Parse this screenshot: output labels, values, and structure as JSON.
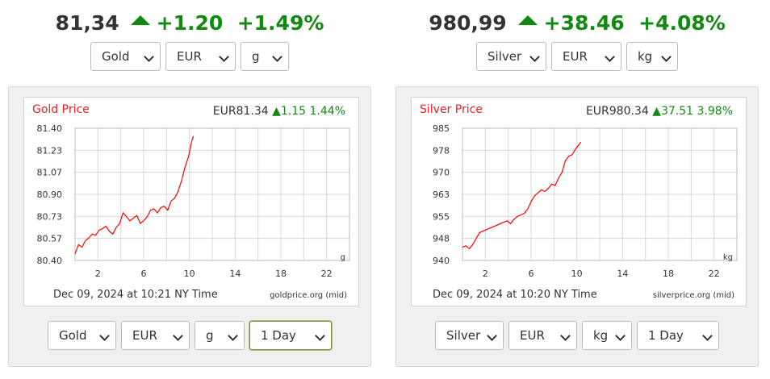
{
  "gold": {
    "price": "81,34",
    "change": "+1.20",
    "change_pct": "+1.49%",
    "metal_select": "Gold",
    "currency_select": "EUR",
    "unit_select": "g",
    "range_select": "1 Day",
    "chart": {
      "title": "Gold Price",
      "header_price": "EUR81.34",
      "header_change": "1.15",
      "header_pct": "1.44%",
      "timestamp": "Dec 09, 2024 at 10:21 NY Time",
      "source": "goldprice.org (mid)",
      "unit_label": "g"
    }
  },
  "silver": {
    "price": "980,99",
    "change": "+38.46",
    "change_pct": "+4.08%",
    "metal_select": "Silver",
    "currency_select": "EUR",
    "unit_select": "kg",
    "range_select": "1 Day",
    "chart": {
      "title": "Silver Price",
      "header_price": "EUR980.34",
      "header_change": "37.51",
      "header_pct": "3.98%",
      "timestamp": "Dec 09, 2024 at 10:20 NY Time",
      "source": "silverprice.org (mid)",
      "unit_label": "kg"
    }
  },
  "colors": {
    "up_green": "#128a12",
    "title_red": "#e8202a",
    "line_red": "#ff0000",
    "grid": "#d8d8d8",
    "panel_bg": "#f0f0f0"
  },
  "icons": {
    "up": "triangle-up-icon",
    "dropdown": "chevron-down-icon"
  },
  "chart_data": [
    {
      "type": "line",
      "title": "Gold Price",
      "xlabel": "",
      "ylabel": "",
      "x_ticks": [
        2,
        6,
        10,
        14,
        18,
        22
      ],
      "y_ticks": [
        "80.40",
        "80.57",
        "80.73",
        "80.90",
        "81.07",
        "81.23",
        "81.40"
      ],
      "xlim": [
        0,
        24
      ],
      "ylim": [
        80.4,
        81.4
      ],
      "grid": true,
      "series": [
        {
          "x": [
            0.0,
            0.3,
            0.6,
            0.9,
            1.2,
            1.5,
            1.8,
            2.1,
            2.4,
            2.7,
            3.0,
            3.3,
            3.6,
            3.9,
            4.2,
            4.5,
            4.8,
            5.1,
            5.4,
            5.7,
            6.0,
            6.3,
            6.6,
            6.9,
            7.2,
            7.5,
            7.8,
            8.1,
            8.4,
            8.7,
            9.0,
            9.3,
            9.6,
            9.9,
            10.2,
            10.35
          ],
          "y": [
            80.45,
            80.52,
            80.5,
            80.55,
            80.57,
            80.6,
            80.59,
            80.63,
            80.64,
            80.66,
            80.62,
            80.6,
            80.65,
            80.68,
            80.76,
            80.73,
            80.7,
            80.72,
            80.74,
            80.68,
            80.7,
            80.73,
            80.78,
            80.79,
            80.76,
            80.8,
            80.81,
            80.78,
            80.85,
            80.87,
            80.92,
            81.0,
            81.1,
            81.18,
            81.3,
            81.34
          ]
        }
      ]
    },
    {
      "type": "line",
      "title": "Silver Price",
      "xlabel": "",
      "ylabel": "",
      "x_ticks": [
        2,
        6,
        10,
        14,
        18,
        22
      ],
      "y_ticks": [
        "940",
        "948",
        "955",
        "963",
        "970",
        "978",
        "985"
      ],
      "xlim": [
        0,
        24
      ],
      "ylim": [
        940,
        985
      ],
      "grid": true,
      "series": [
        {
          "x": [
            0.0,
            0.3,
            0.6,
            0.9,
            1.2,
            1.5,
            1.8,
            2.1,
            2.4,
            2.7,
            3.0,
            3.3,
            3.6,
            3.9,
            4.2,
            4.5,
            4.8,
            5.1,
            5.4,
            5.7,
            6.0,
            6.3,
            6.6,
            6.9,
            7.2,
            7.5,
            7.8,
            8.1,
            8.4,
            8.7,
            9.0,
            9.3,
            9.6,
            9.9,
            10.2,
            10.35
          ],
          "y": [
            944.5,
            945.0,
            944.0,
            945.5,
            947.5,
            949.5,
            950.0,
            950.5,
            951.0,
            951.5,
            952.0,
            952.5,
            953.0,
            953.5,
            952.5,
            954.0,
            955.0,
            955.5,
            956.0,
            957.5,
            960.0,
            962.0,
            963.0,
            964.0,
            963.5,
            964.5,
            966.0,
            965.5,
            968.0,
            970.0,
            974.0,
            975.5,
            976.0,
            978.0,
            979.5,
            980.3
          ]
        }
      ]
    }
  ]
}
